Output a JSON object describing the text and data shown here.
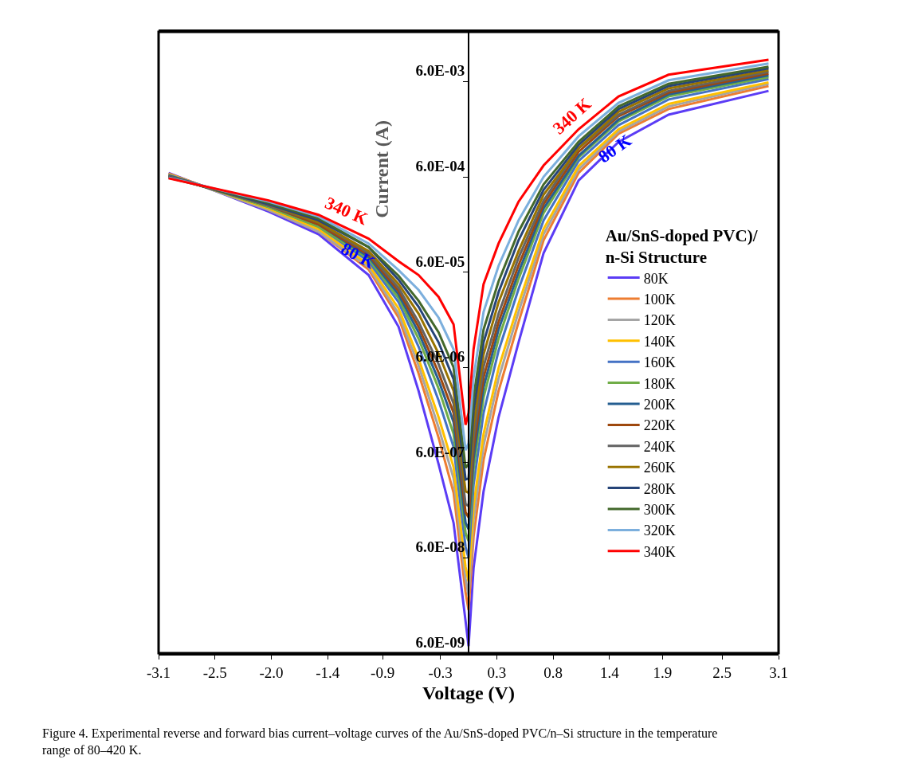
{
  "chart_data": {
    "type": "line",
    "xlabel": "Voltage (V)",
    "ylabel": "Current (A)",
    "legend_title": "Au/SnS-doped PVC)/\nn-Si Structure",
    "x": [
      -3.0,
      -2.0,
      -1.5,
      -1.0,
      -0.7,
      -0.5,
      -0.3,
      -0.15,
      -0.03,
      0.0,
      0.05,
      0.15,
      0.3,
      0.5,
      0.75,
      1.1,
      1.5,
      2.0,
      3.0
    ],
    "series": [
      {
        "name": "80K",
        "color": "#5b3cf5",
        "values": [
          0.00066,
          0.00026,
          0.00015,
          5.6e-05,
          1.6e-05,
          3.4e-06,
          5.8e-07,
          1.4e-07,
          1.3e-08,
          7.1e-09,
          4.7e-08,
          3e-07,
          1.8e-06,
          1.1e-05,
          9.5e-05,
          0.00055,
          0.0014,
          0.0027,
          0.0048
        ]
      },
      {
        "name": "100K",
        "color": "#ed7d31",
        "values": [
          0.00065,
          0.00027,
          0.00016,
          6.4e-05,
          2e-05,
          5.2e-06,
          1.1e-06,
          2.9e-07,
          2.6e-08,
          1.7e-08,
          1e-07,
          6.4e-07,
          3.4e-06,
          1.8e-05,
          0.00013,
          0.00066,
          0.0017,
          0.0031,
          0.0054
        ]
      },
      {
        "name": "120K",
        "color": "#a5a5a5",
        "values": [
          0.00064,
          0.00027,
          0.00016,
          6.8e-05,
          2.2e-05,
          6.3e-06,
          1.4e-06,
          4.1e-07,
          3.6e-08,
          2.4e-08,
          1.5e-07,
          9.1e-07,
          4.6e-06,
          2.3e-05,
          0.00015,
          0.00072,
          0.0018,
          0.0033,
          0.0057
        ]
      },
      {
        "name": "140K",
        "color": "#ffc000",
        "values": [
          0.00064,
          0.00028,
          0.00017,
          7.2e-05,
          2.5e-05,
          7.4e-06,
          1.8e-06,
          5.4e-07,
          4.8e-08,
          3.4e-08,
          2.1e-07,
          1.2e-06,
          5.9e-06,
          2.8e-05,
          0.00017,
          0.00078,
          0.0019,
          0.0035,
          0.0059
        ]
      },
      {
        "name": "160K",
        "color": "#4472c4",
        "values": [
          0.00063,
          0.00029,
          0.00018,
          7.8e-05,
          2.9e-05,
          9.9e-06,
          2.7e-06,
          8.8e-07,
          7.8e-08,
          6e-08,
          3.5e-07,
          2e-06,
          9e-06,
          4e-05,
          0.00021,
          0.00088,
          0.0021,
          0.0039,
          0.0064
        ]
      },
      {
        "name": "180K",
        "color": "#70ad47",
        "values": [
          0.00062,
          0.00029,
          0.00018,
          8.3e-05,
          3.2e-05,
          1.2e-05,
          3.6e-06,
          1.2e-06,
          1.1e-07,
          9e-08,
          5.1e-07,
          2.9e-06,
          1.2e-05,
          5.1e-05,
          0.00025,
          0.00096,
          0.0023,
          0.0042,
          0.0067
        ]
      },
      {
        "name": "200K",
        "color": "#255e91",
        "values": [
          0.00062,
          0.0003,
          0.00019,
          8.7e-05,
          3.5e-05,
          1.4e-05,
          4.4e-06,
          1.6e-06,
          1.4e-07,
          1.2e-07,
          6.6e-07,
          3.7e-06,
          1.5e-05,
          6e-05,
          0.00028,
          0.001,
          0.0024,
          0.0044,
          0.007
        ]
      },
      {
        "name": "220K",
        "color": "#9e480e",
        "values": [
          0.00061,
          0.0003,
          0.00019,
          9.1e-05,
          3.8e-05,
          1.6e-05,
          5.3e-06,
          2e-06,
          1.8e-07,
          1.6e-07,
          8.6e-07,
          4.7e-06,
          1.8e-05,
          7.1e-05,
          0.00031,
          0.0011,
          0.0026,
          0.0046,
          0.0073
        ]
      },
      {
        "name": "240K",
        "color": "#636363",
        "values": [
          0.00061,
          0.0003,
          0.0002,
          9.5e-05,
          4.1e-05,
          1.8e-05,
          6.5e-06,
          2.5e-06,
          2.2e-07,
          2.1e-07,
          1.1e-06,
          6.1e-06,
          2.2e-05,
          8.5e-05,
          0.00034,
          0.0012,
          0.0027,
          0.0048,
          0.0076
        ]
      },
      {
        "name": "260K",
        "color": "#997300",
        "values": [
          0.0006,
          0.00031,
          0.0002,
          0.0001,
          4.5e-05,
          2.2e-05,
          8.4e-06,
          3.4e-06,
          3e-07,
          2.9e-07,
          1.5e-06,
          8.2e-06,
          2.9e-05,
          0.0001,
          0.00039,
          0.0012,
          0.0029,
          0.0051,
          0.0079
        ]
      },
      {
        "name": "280K",
        "color": "#264478",
        "values": [
          0.0006,
          0.00031,
          0.00021,
          0.00011,
          5e-05,
          2.6e-05,
          1.1e-05,
          4.5e-06,
          4e-07,
          4.1e-07,
          2.1e-06,
          1.1e-05,
          3.7e-05,
          0.00013,
          0.00044,
          0.0013,
          0.0031,
          0.0054,
          0.0083
        ]
      },
      {
        "name": "300K",
        "color": "#43682b",
        "values": [
          0.00059,
          0.00032,
          0.00022,
          0.00011,
          5.5e-05,
          3e-05,
          1.4e-05,
          6e-06,
          5.3e-07,
          5.8e-07,
          2.9e-06,
          1.5e-05,
          4.8e-05,
          0.00016,
          0.0005,
          0.0014,
          0.0033,
          0.0057,
          0.0086
        ]
      },
      {
        "name": "320K",
        "color": "#7cafdd",
        "values": [
          0.00059,
          0.00033,
          0.00023,
          0.00012,
          6.3e-05,
          3.9e-05,
          2e-05,
          9.3e-06,
          8.1e-07,
          9.6e-07,
          4.7e-06,
          2.3e-05,
          7e-05,
          0.00021,
          0.0006,
          0.0016,
          0.0036,
          0.0062,
          0.0093
        ]
      },
      {
        "name": "340K",
        "color": "#ff0000",
        "values": [
          0.00058,
          0.00034,
          0.00024,
          0.000135,
          7.8e-05,
          5.6e-05,
          3.3e-05,
          1.7e-05,
          1.5e-06,
          2e-06,
          9.3e-06,
          4.5e-05,
          0.00012,
          0.00033,
          0.00079,
          0.0019,
          0.0042,
          0.0071,
          0.0102
        ]
      }
    ],
    "xlim": [
      -3.1,
      3.1
    ],
    "xticks": [
      -3.1,
      {
        "value": -2.536,
        "label": "-2.5"
      },
      {
        "value": -1.973,
        "label": "-2.0"
      },
      {
        "value": -1.409,
        "label": "-1.4"
      },
      {
        "value": -0.86,
        "label": "-0.9"
      },
      {
        "value": -0.282,
        "label": "-0.3"
      },
      {
        "value": 0.282,
        "label": "0.3"
      },
      {
        "value": 0.845,
        "label": "0.8"
      },
      {
        "value": 1.409,
        "label": "1.4"
      },
      {
        "value": 1.94,
        "label": "1.9"
      },
      {
        "value": 2.536,
        "label": "2.5"
      },
      3.1
    ],
    "ylim": [
      6e-09,
      0.02
    ],
    "yticks": [
      {
        "value": 6e-09,
        "label": "6.0E-09"
      },
      {
        "value": 6e-08,
        "label": "6.0E-08"
      },
      {
        "value": 6e-07,
        "label": "6.0E-07"
      },
      {
        "value": 6e-06,
        "label": "6.0E-06"
      },
      {
        "value": 6e-05,
        "label": "6.0E-05"
      },
      {
        "value": 0.0006,
        "label": "6.0E-04"
      },
      {
        "value": 0.006,
        "label": "6.0E-03"
      }
    ],
    "log": "y",
    "legend": "bottom right",
    "marker": "none",
    "line_style": "solid",
    "annotations": [
      "340 K",
      "80 K",
      "340 K",
      "80 K",
      "Figure 4. Experimental reverse and forward bias current–voltage curves of the Au/SnS-doped PVC/n–Si structure in the temperature range of 80–420 K."
    ]
  }
}
